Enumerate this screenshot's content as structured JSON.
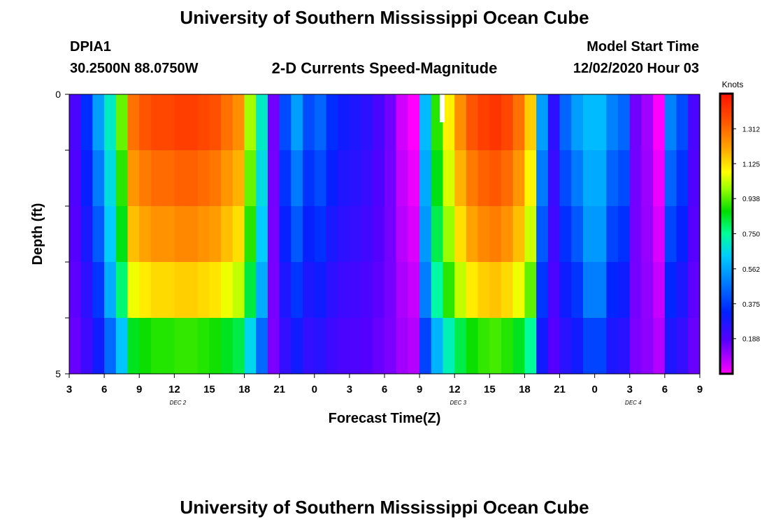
{
  "header": {
    "title": "University of Southern Mississippi Ocean Cube",
    "station": "DPIA1",
    "coords": "30.2500N 88.0750W",
    "product": "2-D Currents Speed-Magnitude",
    "start_label": "Model Start Time",
    "start_value": "12/02/2020 Hour 03"
  },
  "footer": {
    "title": "University of Southern Mississippi Ocean Cube"
  },
  "chart_data": {
    "type": "heatmap",
    "title": "2-D Currents Speed-Magnitude",
    "xlabel": "Forecast Time(Z)",
    "ylabel": "Depth (ft)",
    "ylim": [
      0,
      5
    ],
    "y_ticks": [
      "0",
      "5"
    ],
    "x_ticks": [
      "3",
      "6",
      "9",
      "12",
      "15",
      "18",
      "21",
      "0",
      "3",
      "6",
      "9",
      "12",
      "15",
      "18",
      "21",
      "0",
      "3",
      "6",
      "9"
    ],
    "date_labels": [
      {
        "text": "DEC 2",
        "at_tick": 3
      },
      {
        "text": "DEC 3",
        "at_tick": 11
      },
      {
        "text": "DEC 4",
        "at_tick": 16
      }
    ],
    "colorbar": {
      "label": "Knots",
      "ticks": [
        "1.312",
        "1.125",
        "0.938",
        "0.750",
        "0.562",
        "0.375",
        "0.188"
      ],
      "range": [
        0,
        1.5
      ]
    },
    "forecast_hours": 54,
    "depth_layers": 5,
    "surface_profile": [
      0.2,
      0.35,
      0.55,
      0.7,
      0.95,
      1.3,
      1.35,
      1.38,
      1.38,
      1.4,
      1.4,
      1.38,
      1.36,
      1.3,
      1.25,
      1.0,
      0.7,
      0.15,
      0.4,
      0.55,
      0.4,
      0.45,
      0.35,
      0.3,
      0.28,
      0.25,
      0.2,
      0.15,
      0.05,
      0.0,
      0.6,
      0.9,
      1.1,
      1.25,
      1.35,
      1.4,
      1.42,
      1.38,
      1.3,
      1.15,
      0.55,
      0.25,
      0.45,
      0.55,
      0.6,
      0.6,
      0.5,
      0.45,
      0.15,
      0.1,
      0.0,
      0.5,
      0.4,
      0.2
    ],
    "depth_factors": [
      1.0,
      0.95,
      0.9,
      0.82,
      0.65
    ]
  }
}
